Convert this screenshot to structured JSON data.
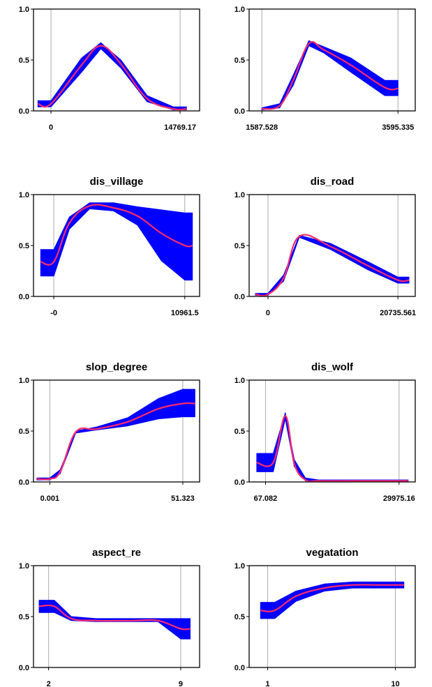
{
  "colors": {
    "band": "#0000ff",
    "mean_line": "#ff2b6a",
    "grid": "#aaaaaa",
    "frame": "#000000",
    "background": "#ffffff"
  },
  "chart_data": [
    {
      "type": "line",
      "title": "",
      "xlabel": "",
      "ylabel": "",
      "x_tick_labels": [
        "0",
        "14769.17"
      ],
      "y_tick_labels": [
        "0.0",
        "0.5",
        "1.0"
      ],
      "xlim": [
        -2000,
        17000
      ],
      "ylim": [
        0,
        1
      ],
      "grid": true,
      "series": [
        {
          "x": [
            -1500,
            0,
            3500,
            5700,
            8000,
            11000,
            14000,
            15500
          ],
          "y": [
            0.07,
            0.07,
            0.45,
            0.64,
            0.46,
            0.12,
            0.02,
            0.02
          ],
          "lower": [
            0.04,
            0.04,
            0.38,
            0.61,
            0.42,
            0.09,
            0.01,
            0.01
          ],
          "upper": [
            0.1,
            0.1,
            0.52,
            0.67,
            0.5,
            0.15,
            0.04,
            0.04
          ]
        }
      ]
    },
    {
      "type": "line",
      "title": "",
      "xlabel": "",
      "ylabel": "",
      "x_tick_labels": [
        "1587.528",
        "3595.335"
      ],
      "y_tick_labels": [
        "0.0",
        "0.5",
        "1.0"
      ],
      "xlim": [
        1400,
        3850
      ],
      "ylim": [
        0,
        1
      ],
      "grid": true,
      "series": [
        {
          "x": [
            1587.528,
            1850,
            2050,
            2280,
            2500,
            2900,
            3400,
            3595.335
          ],
          "y": [
            0.02,
            0.05,
            0.3,
            0.66,
            0.6,
            0.45,
            0.23,
            0.22
          ],
          "lower": [
            0.01,
            0.03,
            0.25,
            0.64,
            0.57,
            0.38,
            0.15,
            0.15
          ],
          "upper": [
            0.03,
            0.07,
            0.35,
            0.69,
            0.63,
            0.52,
            0.3,
            0.3
          ]
        }
      ]
    },
    {
      "type": "line",
      "title": "dis_village",
      "xlabel": "",
      "ylabel": "",
      "x_tick_labels": [
        "-0",
        "10961.5"
      ],
      "y_tick_labels": [
        "0.0",
        "0.5",
        "1.0"
      ],
      "xlim": [
        -1700,
        12200
      ],
      "ylim": [
        0,
        1
      ],
      "grid": true,
      "series": [
        {
          "x": [
            -1100,
            0,
            1300,
            3000,
            5000,
            7000,
            9000,
            10961.5,
            11600
          ],
          "y": [
            0.34,
            0.34,
            0.72,
            0.89,
            0.87,
            0.79,
            0.62,
            0.5,
            0.5
          ],
          "lower": [
            0.2,
            0.2,
            0.66,
            0.86,
            0.84,
            0.7,
            0.35,
            0.16,
            0.16
          ],
          "upper": [
            0.46,
            0.46,
            0.78,
            0.92,
            0.92,
            0.88,
            0.85,
            0.82,
            0.82
          ]
        }
      ]
    },
    {
      "type": "line",
      "title": "dis_road",
      "xlabel": "",
      "ylabel": "",
      "x_tick_labels": [
        "0",
        "20735.561"
      ],
      "y_tick_labels": [
        "0.0",
        "0.5",
        "1.0"
      ],
      "xlim": [
        -3000,
        23500
      ],
      "ylim": [
        0,
        1
      ],
      "grid": true,
      "series": [
        {
          "x": [
            -2000,
            0,
            2500,
            5000,
            10000,
            16000,
            20735.561,
            22500
          ],
          "y": [
            0.02,
            0.02,
            0.18,
            0.59,
            0.49,
            0.3,
            0.16,
            0.16
          ],
          "lower": [
            0.01,
            0.01,
            0.15,
            0.58,
            0.46,
            0.26,
            0.13,
            0.13
          ],
          "upper": [
            0.03,
            0.03,
            0.21,
            0.6,
            0.52,
            0.34,
            0.19,
            0.19
          ]
        }
      ]
    },
    {
      "type": "line",
      "title": "slop_degree",
      "xlabel": "",
      "ylabel": "",
      "x_tick_labels": [
        "0.001",
        "51.323"
      ],
      "y_tick_labels": [
        "0.0",
        "0.5",
        "1.0"
      ],
      "xlim": [
        -6.3,
        57.8
      ],
      "ylim": [
        0,
        1
      ],
      "grid": true,
      "series": [
        {
          "x": [
            -5,
            0.001,
            4,
            10,
            18,
            30,
            42,
            51.323,
            56
          ],
          "y": [
            0.03,
            0.03,
            0.1,
            0.49,
            0.52,
            0.59,
            0.72,
            0.77,
            0.77
          ],
          "lower": [
            0.02,
            0.02,
            0.08,
            0.48,
            0.51,
            0.55,
            0.62,
            0.64,
            0.64
          ],
          "upper": [
            0.04,
            0.04,
            0.12,
            0.5,
            0.54,
            0.63,
            0.82,
            0.91,
            0.91
          ]
        }
      ]
    },
    {
      "type": "line",
      "title": "dis_wolf",
      "xlabel": "",
      "ylabel": "",
      "x_tick_labels": [
        "67.082",
        "29975.16"
      ],
      "y_tick_labels": [
        "0.0",
        "0.5",
        "1.0"
      ],
      "xlim": [
        -3600,
        33600
      ],
      "ylim": [
        0,
        1
      ],
      "grid": true,
      "series": [
        {
          "x": [
            -1900,
            1800,
            4500,
            6500,
            9000,
            12000,
            20000,
            32000
          ],
          "y": [
            0.19,
            0.19,
            0.65,
            0.18,
            0.02,
            0.01,
            0.01,
            0.01
          ],
          "lower": [
            0.1,
            0.1,
            0.62,
            0.15,
            0.01,
            0.0,
            0.0,
            0.0
          ],
          "upper": [
            0.28,
            0.28,
            0.68,
            0.22,
            0.04,
            0.02,
            0.02,
            0.02
          ]
        }
      ]
    },
    {
      "type": "line",
      "title": "aspect_re",
      "xlabel": "",
      "ylabel": "",
      "x_tick_labels": [
        "2",
        "9"
      ],
      "y_tick_labels": [
        "0.0",
        "0.5",
        "1.0"
      ],
      "xlim": [
        1.2,
        10
      ],
      "ylim": [
        0,
        1
      ],
      "grid": true,
      "series": [
        {
          "x": [
            1.5,
            2.3,
            3.2,
            4.5,
            6.5,
            7.8,
            9,
            9.5
          ],
          "y": [
            0.6,
            0.6,
            0.48,
            0.46,
            0.46,
            0.46,
            0.38,
            0.38
          ],
          "lower": [
            0.54,
            0.54,
            0.46,
            0.45,
            0.45,
            0.45,
            0.28,
            0.28
          ],
          "upper": [
            0.66,
            0.66,
            0.5,
            0.48,
            0.48,
            0.48,
            0.48,
            0.48
          ]
        }
      ]
    },
    {
      "type": "line",
      "title": "vegatation",
      "xlabel": "",
      "ylabel": "",
      "x_tick_labels": [
        "1",
        "10"
      ],
      "y_tick_labels": [
        "0.0",
        "0.5",
        "1.0"
      ],
      "xlim": [
        -0.3,
        11.4
      ],
      "ylim": [
        0,
        1
      ],
      "grid": true,
      "series": [
        {
          "x": [
            0.5,
            1.5,
            3,
            5,
            7,
            9,
            10.6
          ],
          "y": [
            0.56,
            0.56,
            0.7,
            0.78,
            0.81,
            0.81,
            0.81
          ],
          "lower": [
            0.48,
            0.48,
            0.65,
            0.75,
            0.78,
            0.78,
            0.78
          ],
          "upper": [
            0.64,
            0.64,
            0.75,
            0.82,
            0.84,
            0.84,
            0.84
          ]
        }
      ]
    }
  ]
}
